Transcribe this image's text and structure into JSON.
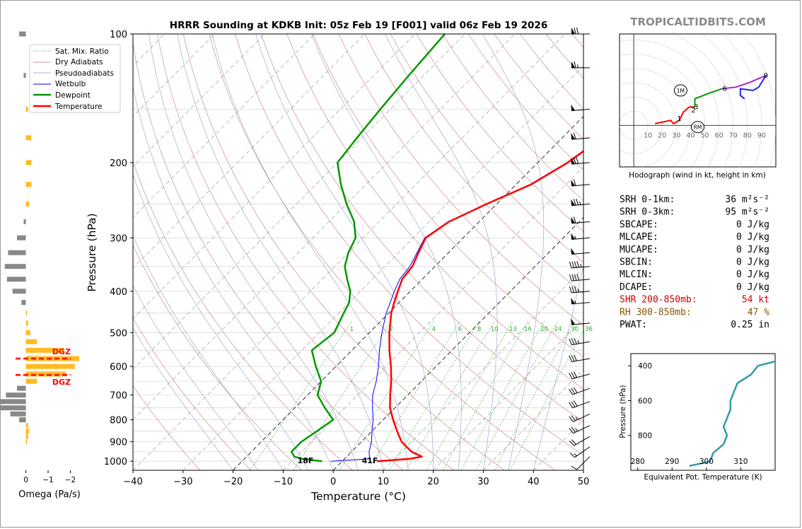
{
  "brand": "TROPICALTIDBITS.COM",
  "title": "HRRR Sounding at KDKB Init: 05z Feb 19 [F001] valid 06z Feb 19 2026",
  "colors": {
    "temperature": "#ff0000",
    "dewpoint": "#009900",
    "wetbulb": "#0000ff",
    "dry_adiabat": "#cc7777",
    "moist_adiabat": "#9999cc",
    "mixing_ratio": "#33aa33",
    "hodo_0_3": "#ff0000",
    "hodo_3_6": "#009900",
    "hodo_6_9": "#aa22cc",
    "hodo_9plus": "#2222ee",
    "theta_e": "#3399aa",
    "omega_up": "#ffbb22",
    "omega_down": "#888888",
    "dgz": "#ff0000",
    "shr": "#cc0000",
    "rh": "#885500"
  },
  "chart_data": [
    {
      "id": "skewt",
      "type": "line",
      "subtype": "skew-t log-p",
      "xlabel": "Temperature (°C)",
      "ylabel": "Pressure (hPa)",
      "xlim": [
        -40,
        50
      ],
      "ylim": [
        1050,
        100
      ],
      "y_scale": "log",
      "x_ticks": [
        "−40",
        "−30",
        "−20",
        "−10",
        "0",
        "10",
        "20",
        "30",
        "40",
        "50"
      ],
      "y_ticks": [
        "100",
        "200",
        "300",
        "400",
        "500",
        "600",
        "700",
        "800",
        "900",
        "1000"
      ],
      "surface_labels": {
        "temperature": "41F",
        "dewpoint": "18F"
      },
      "mixing_ratio_labels": [
        "1",
        "2",
        "4",
        "6",
        "8",
        "10",
        "13",
        "16",
        "20",
        "24",
        "30",
        "36"
      ],
      "legend": {
        "placement": "upper-left",
        "entries": [
          "Sat. Mix. Ratio",
          "Dry Adiabats",
          "Pseudoadiabats",
          "Wetbulb",
          "Dewpoint",
          "Temperature"
        ]
      },
      "series": [
        {
          "name": "Temperature",
          "points": [
            [
              1000,
              7
            ],
            [
              987,
              13
            ],
            [
              975,
              15
            ],
            [
              950,
              12
            ],
            [
              925,
              10
            ],
            [
              900,
              8
            ],
            [
              850,
              5
            ],
            [
              800,
              2
            ],
            [
              750,
              -1
            ],
            [
              700,
              -3.5
            ],
            [
              650,
              -6
            ],
            [
              600,
              -9
            ],
            [
              550,
              -12.5
            ],
            [
              500,
              -16
            ],
            [
              450,
              -19.5
            ],
            [
              425,
              -21
            ],
            [
              400,
              -22.5
            ],
            [
              375,
              -24
            ],
            [
              350,
              -24.5
            ],
            [
              325,
              -26
            ],
            [
              300,
              -27.5
            ],
            [
              275,
              -26
            ],
            [
              250,
              -22
            ],
            [
              225,
              -17
            ],
            [
              200,
              -14
            ],
            [
              175,
              -12
            ],
            [
              150,
              -8
            ],
            [
              125,
              -4
            ],
            [
              100,
              0
            ]
          ]
        },
        {
          "name": "Dewpoint",
          "points": [
            [
              1000,
              -4
            ],
            [
              987,
              -8.5
            ],
            [
              975,
              -10.5
            ],
            [
              950,
              -12
            ],
            [
              925,
              -12
            ],
            [
              900,
              -12
            ],
            [
              850,
              -11
            ],
            [
              800,
              -10
            ],
            [
              750,
              -14
            ],
            [
              700,
              -18
            ],
            [
              650,
              -20
            ],
            [
              600,
              -24
            ],
            [
              550,
              -28
            ],
            [
              500,
              -27
            ],
            [
              450,
              -29
            ],
            [
              425,
              -30
            ],
            [
              400,
              -32
            ],
            [
              375,
              -35
            ],
            [
              350,
              -38
            ],
            [
              325,
              -40
            ],
            [
              300,
              -41.5
            ],
            [
              275,
              -45
            ],
            [
              250,
              -50
            ],
            [
              225,
              -55
            ],
            [
              200,
              -60
            ],
            [
              175,
              -61
            ],
            [
              150,
              -62
            ],
            [
              125,
              -63
            ],
            [
              100,
              -64
            ]
          ]
        },
        {
          "name": "Wetbulb",
          "points": [
            [
              1000,
              -2.3
            ],
            [
              987,
              5
            ],
            [
              950,
              3.5
            ],
            [
              900,
              2
            ],
            [
              850,
              0
            ],
            [
              800,
              -2
            ],
            [
              750,
              -4.5
            ],
            [
              700,
              -7
            ],
            [
              650,
              -9
            ],
            [
              600,
              -11.5
            ],
            [
              550,
              -14.5
            ],
            [
              500,
              -17.5
            ],
            [
              450,
              -20.5
            ],
            [
              425,
              -21.8
            ],
            [
              400,
              -23.2
            ],
            [
              375,
              -24.5
            ],
            [
              350,
              -25
            ],
            [
              325,
              -26.3
            ],
            [
              300,
              -27.7
            ],
            [
              275,
              -26.2
            ],
            [
              250,
              -22.2
            ],
            [
              225,
              -17.2
            ],
            [
              200,
              -14.2
            ],
            [
              175,
              -12.2
            ],
            [
              150,
              -8.2
            ],
            [
              125,
              -4.2
            ],
            [
              100,
              -0.2
            ]
          ]
        }
      ]
    },
    {
      "id": "hodograph",
      "type": "line",
      "title": "Hodograph (wind in kt, height in km)",
      "xlim": [
        -10,
        100
      ],
      "ylim": [
        -25,
        55
      ],
      "x_ticks": [
        "10",
        "20",
        "30",
        "40",
        "50",
        "60",
        "70",
        "80",
        "90"
      ],
      "markers": [
        {
          "label": "1M",
          "u": 33,
          "v": 21
        },
        {
          "label": "RM",
          "u": 45,
          "v": -1
        }
      ],
      "height_labels": [
        {
          "label": "1",
          "u": 32,
          "v": 4
        },
        {
          "label": "2",
          "u": 42,
          "v": 9
        },
        {
          "label": "3",
          "u": 44,
          "v": 11
        },
        {
          "label": "6",
          "u": 64,
          "v": 22
        },
        {
          "label": "9",
          "u": 93,
          "v": 30
        }
      ],
      "series": [
        {
          "name": "0-3 km",
          "points": [
            [
              15,
              1
            ],
            [
              26,
              3
            ],
            [
              28,
              1
            ],
            [
              32,
              3
            ],
            [
              35,
              8
            ],
            [
              39,
              11
            ],
            [
              43,
              11
            ]
          ]
        },
        {
          "name": "3-6 km",
          "points": [
            [
              43,
              11
            ],
            [
              43,
              16
            ],
            [
              52,
              19
            ],
            [
              62,
              22
            ]
          ]
        },
        {
          "name": "6-9 km",
          "points": [
            [
              62,
              22
            ],
            [
              72,
              23
            ],
            [
              82,
              26
            ],
            [
              93,
              30
            ]
          ]
        },
        {
          "name": "9+ km",
          "points": [
            [
              93,
              30
            ],
            [
              88,
              23
            ],
            [
              84,
              21
            ],
            [
              75,
              22
            ],
            [
              75,
              18
            ],
            [
              78,
              16
            ]
          ]
        }
      ]
    },
    {
      "id": "omega",
      "type": "bar",
      "orientation": "horizontal",
      "xlabel": "Omega (Pa/s)",
      "x_ticks": [
        "0",
        "−1",
        "−2"
      ],
      "xlim": [
        0.4,
        -2.4
      ],
      "dgz_label": "DGZ",
      "dgz_pressures": [
        575,
        628
      ],
      "bars": [
        [
          100,
          0.3
        ],
        [
          125,
          0.1
        ],
        [
          150,
          -0.1
        ],
        [
          175,
          -0.25
        ],
        [
          200,
          -0.25
        ],
        [
          225,
          -0.25
        ],
        [
          250,
          -0.15
        ],
        [
          275,
          0.1
        ],
        [
          300,
          0.4
        ],
        [
          325,
          0.8
        ],
        [
          350,
          0.95
        ],
        [
          375,
          0.85
        ],
        [
          400,
          0.6
        ],
        [
          425,
          0.2
        ],
        [
          450,
          -0.05
        ],
        [
          475,
          -0.1
        ],
        [
          500,
          -0.2
        ],
        [
          525,
          -0.5
        ],
        [
          550,
          -1.7
        ],
        [
          575,
          -2.4
        ],
        [
          600,
          -2.2
        ],
        [
          625,
          -1.8
        ],
        [
          650,
          -0.5
        ],
        [
          675,
          0.4
        ],
        [
          700,
          0.9
        ],
        [
          725,
          1.3
        ],
        [
          750,
          1.4
        ],
        [
          775,
          0.7
        ],
        [
          800,
          0.3
        ],
        [
          825,
          -0.1
        ],
        [
          850,
          -0.15
        ],
        [
          875,
          -0.1
        ],
        [
          900,
          -0.05
        ]
      ]
    },
    {
      "id": "theta_e",
      "type": "line",
      "xlabel": "Equivalent Pot. Temperature (K)",
      "ylabel": "Pressure (hPa)",
      "xlim": [
        278,
        320
      ],
      "ylim": [
        1000,
        330
      ],
      "x_ticks": [
        "280",
        "290",
        "300",
        "310"
      ],
      "y_ticks": [
        "400",
        "600",
        "800"
      ],
      "series": [
        {
          "name": "Equivalent Pot. Temperature",
          "points": [
            [
              975,
              295
            ],
            [
              950,
              301
            ],
            [
              900,
              302
            ],
            [
              850,
              305
            ],
            [
              800,
              306
            ],
            [
              750,
              305
            ],
            [
              700,
              306
            ],
            [
              650,
              307
            ],
            [
              600,
              307
            ],
            [
              550,
              308
            ],
            [
              500,
              309
            ],
            [
              450,
              313
            ],
            [
              400,
              315
            ],
            [
              375,
              320
            ],
            [
              350,
              323
            ],
            [
              330,
              326
            ]
          ]
        }
      ]
    }
  ],
  "stats": [
    {
      "label": "SRH 0-1km:",
      "value": "36 m²s⁻²",
      "color": "#000000"
    },
    {
      "label": "SRH 0-3km:",
      "value": "95 m²s⁻²",
      "color": "#000000"
    },
    {
      "label": "SBCAPE:",
      "value": "0 J/kg",
      "color": "#000000"
    },
    {
      "label": "MLCAPE:",
      "value": "0 J/kg",
      "color": "#000000"
    },
    {
      "label": "MUCAPE:",
      "value": "0 J/kg",
      "color": "#000000"
    },
    {
      "label": "SBCIN:",
      "value": "0 J/kg",
      "color": "#000000"
    },
    {
      "label": "MLCIN:",
      "value": "0 J/kg",
      "color": "#000000"
    },
    {
      "label": "DCAPE:",
      "value": "0 J/kg",
      "color": "#000000"
    },
    {
      "label": "SHR 200-850mb:",
      "value": "54 kt",
      "color": "#cc0000"
    },
    {
      "label": "RH 300-850mb:",
      "value": "47 %",
      "color": "#885500"
    },
    {
      "label": "PWAT:",
      "value": "0.25 in",
      "color": "#000000"
    }
  ],
  "wind_barbs": [
    {
      "p": 100,
      "dir": 270,
      "spd": 70
    },
    {
      "p": 120,
      "dir": 270,
      "spd": 65
    },
    {
      "p": 150,
      "dir": 265,
      "spd": 50
    },
    {
      "p": 175,
      "dir": 265,
      "spd": 60
    },
    {
      "p": 200,
      "dir": 265,
      "spd": 70
    },
    {
      "p": 225,
      "dir": 265,
      "spd": 60
    },
    {
      "p": 250,
      "dir": 265,
      "spd": 75
    },
    {
      "p": 275,
      "dir": 265,
      "spd": 60
    },
    {
      "p": 300,
      "dir": 265,
      "spd": 55
    },
    {
      "p": 325,
      "dir": 265,
      "spd": 50
    },
    {
      "p": 350,
      "dir": 265,
      "spd": 45
    },
    {
      "p": 375,
      "dir": 265,
      "spd": 40
    },
    {
      "p": 400,
      "dir": 265,
      "spd": 35
    },
    {
      "p": 425,
      "dir": 265,
      "spd": 55
    },
    {
      "p": 475,
      "dir": 265,
      "spd": 50
    },
    {
      "p": 525,
      "dir": 260,
      "spd": 35
    },
    {
      "p": 575,
      "dir": 260,
      "spd": 30
    },
    {
      "p": 625,
      "dir": 255,
      "spd": 30
    },
    {
      "p": 675,
      "dir": 250,
      "spd": 30
    },
    {
      "p": 725,
      "dir": 250,
      "spd": 30
    },
    {
      "p": 775,
      "dir": 245,
      "spd": 25
    },
    {
      "p": 825,
      "dir": 245,
      "spd": 25
    },
    {
      "p": 875,
      "dir": 240,
      "spd": 20
    },
    {
      "p": 925,
      "dir": 235,
      "spd": 15
    },
    {
      "p": 975,
      "dir": 225,
      "spd": 10
    }
  ]
}
